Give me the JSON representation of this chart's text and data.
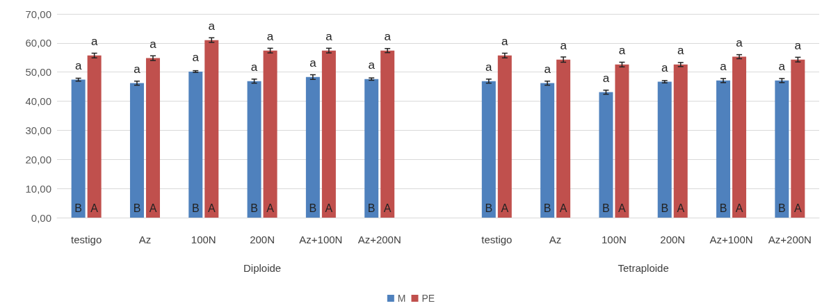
{
  "chart_data": {
    "type": "bar",
    "categories": [
      "testigo",
      "Az",
      "100N",
      "200N",
      "Az+100N",
      "Az+200N",
      null,
      "testigo",
      "Az",
      "100N",
      "200N",
      "Az+100N",
      "Az+200N"
    ],
    "series": [
      {
        "name": "M",
        "color": "#4f81bd",
        "values": [
          47.4,
          46.2,
          50.2,
          46.9,
          48.3,
          47.6,
          null,
          46.9,
          46.2,
          43.1,
          46.7,
          47.1,
          47.1
        ],
        "errors": [
          0.5,
          0.7,
          0.3,
          0.7,
          0.8,
          0.4,
          null,
          0.7,
          0.7,
          0.7,
          0.4,
          0.7,
          0.7
        ],
        "value_labels": [
          "a",
          "a",
          "a",
          "a",
          "a",
          "a",
          null,
          "a",
          "a",
          "a",
          "a",
          "a",
          "a"
        ]
      },
      {
        "name": "PE",
        "color": "#c0504d",
        "values": [
          55.7,
          54.8,
          61.0,
          57.4,
          57.4,
          57.4,
          null,
          55.7,
          54.3,
          52.6,
          52.6,
          55.3,
          54.3
        ],
        "errors": [
          0.8,
          0.8,
          0.8,
          0.8,
          0.8,
          0.7,
          null,
          0.8,
          0.9,
          0.8,
          0.7,
          0.7,
          0.8
        ],
        "value_labels": [
          "a",
          "a",
          "a",
          "a",
          "a",
          "a",
          null,
          "a",
          "a",
          "a",
          "a",
          "a",
          "a"
        ]
      }
    ],
    "ylim": [
      0,
      70
    ],
    "yticks": [
      {
        "value": 0,
        "label": "0,00"
      },
      {
        "value": 10,
        "label": "10,00"
      },
      {
        "value": 20,
        "label": "20,00"
      },
      {
        "value": 30,
        "label": "30,00"
      },
      {
        "value": 40,
        "label": "40,00"
      },
      {
        "value": 50,
        "label": "50,00"
      },
      {
        "value": 60,
        "label": "60,00"
      },
      {
        "value": 70,
        "label": "70,00"
      }
    ],
    "grid": "y",
    "legend": "bottom",
    "annotations": [
      "Diploide",
      "Tetraploide",
      "B",
      "A",
      "B",
      "A",
      "B",
      "A",
      "B",
      "A",
      "B",
      "A",
      "B",
      "A",
      "B",
      "A",
      "B",
      "A",
      "B",
      "A",
      "B",
      "A",
      "B",
      "A",
      "B",
      "A"
    ]
  }
}
